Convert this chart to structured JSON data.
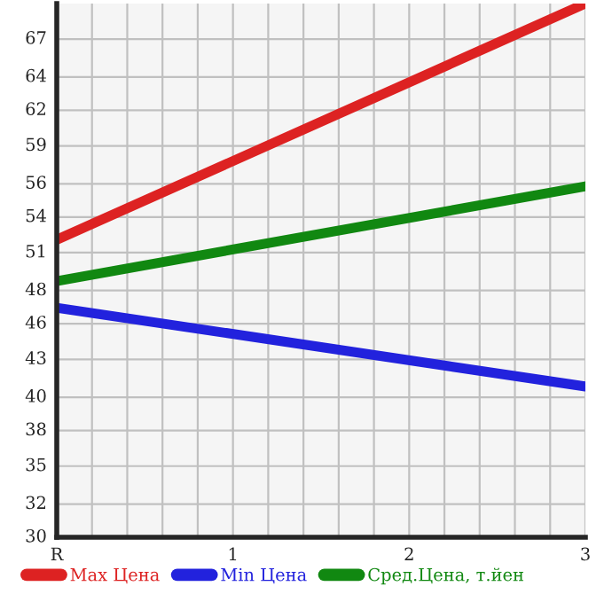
{
  "chart_data": {
    "type": "line",
    "x": [
      0,
      3
    ],
    "series": [
      {
        "name": "Max Цена",
        "color": "#dd2222",
        "values": [
          52.3,
          70
        ]
      },
      {
        "name": "Min Цена",
        "color": "#2222dd",
        "values": [
          47.2,
          41.3
        ]
      },
      {
        "name": "Сред.Цена, т.йен",
        "color": "#118811",
        "values": [
          49.2,
          56.3
        ]
      }
    ],
    "xlim": [
      0,
      3
    ],
    "ylim": [
      30,
      70
    ],
    "xticks": [
      {
        "value": 0,
        "label": "R"
      },
      {
        "value": 0.2,
        "label": null
      },
      {
        "value": 0.4,
        "label": null
      },
      {
        "value": 0.6,
        "label": null
      },
      {
        "value": 0.8,
        "label": null
      },
      1,
      {
        "value": 1.2,
        "label": null
      },
      {
        "value": 1.4,
        "label": null
      },
      {
        "value": 1.6,
        "label": null
      },
      {
        "value": 1.8,
        "label": null
      },
      2,
      {
        "value": 2.2,
        "label": null
      },
      {
        "value": 2.4,
        "label": null
      },
      {
        "value": 2.6,
        "label": null
      },
      {
        "value": 2.8,
        "label": null
      },
      3
    ],
    "yticks": [
      30,
      {
        "value": 32.49,
        "label": "32"
      },
      {
        "value": 35.333,
        "label": "35"
      },
      38,
      {
        "value": 40.49,
        "label": "40"
      },
      {
        "value": 43.333,
        "label": "43"
      },
      46,
      {
        "value": 48.49,
        "label": "48"
      },
      {
        "value": 51.333,
        "label": "51"
      },
      54,
      {
        "value": 56.49,
        "label": "56"
      },
      {
        "value": 59.333,
        "label": "59"
      },
      62,
      {
        "value": 64.49,
        "label": "64"
      },
      {
        "value": 67.333,
        "label": "67"
      }
    ],
    "grid": true,
    "legend": "bottom",
    "marker": "none",
    "line_style": "solid"
  }
}
